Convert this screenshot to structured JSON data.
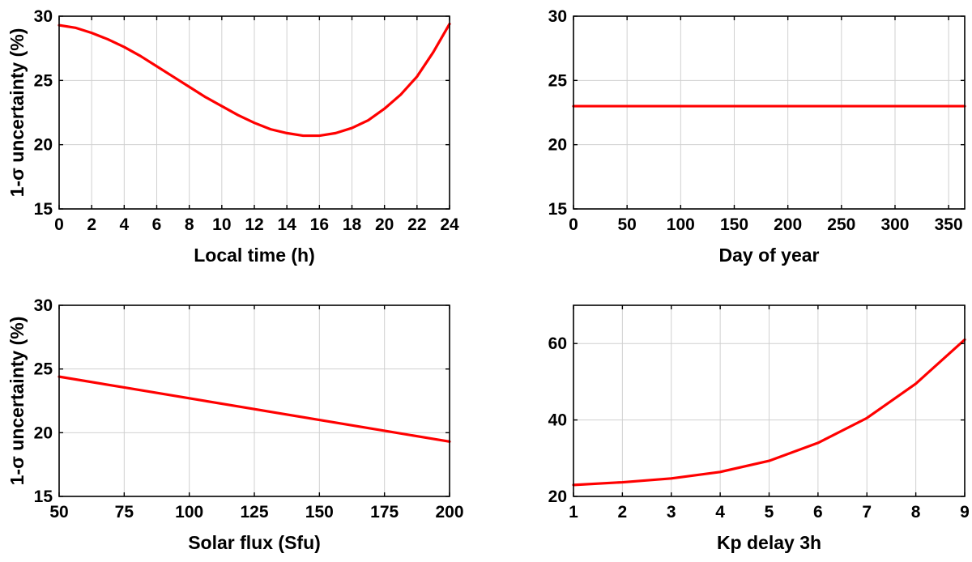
{
  "chart_data": [
    {
      "type": "line",
      "xlabel": "Local time (h)",
      "ylabel": "1-σ uncertainty (%)",
      "xlim": [
        0,
        24
      ],
      "ylim": [
        15,
        30
      ],
      "xticks": [
        0,
        2,
        4,
        6,
        8,
        10,
        12,
        14,
        16,
        18,
        20,
        22,
        24
      ],
      "yticks": [
        15,
        20,
        25,
        30
      ],
      "grid": true,
      "series": [
        {
          "color": "#ff0000",
          "x": [
            0,
            1,
            2,
            3,
            4,
            5,
            6,
            7,
            8,
            9,
            10,
            11,
            12,
            13,
            14,
            15,
            16,
            17,
            18,
            19,
            20,
            21,
            22,
            23,
            24
          ],
          "y": [
            29.3,
            29.1,
            28.7,
            28.2,
            27.6,
            26.9,
            26.1,
            25.3,
            24.5,
            23.7,
            23.0,
            22.3,
            21.7,
            21.2,
            20.9,
            20.7,
            20.7,
            20.9,
            21.3,
            21.9,
            22.8,
            23.9,
            25.3,
            27.2,
            29.4
          ]
        }
      ]
    },
    {
      "type": "line",
      "xlabel": "Day of year",
      "ylabel": "",
      "xlim": [
        0,
        365
      ],
      "ylim": [
        15,
        30
      ],
      "xticks": [
        0,
        50,
        100,
        150,
        200,
        250,
        300,
        350
      ],
      "yticks": [
        15,
        20,
        25,
        30
      ],
      "grid": true,
      "series": [
        {
          "color": "#ff0000",
          "x": [
            0,
            365
          ],
          "y": [
            23.0,
            23.0
          ]
        }
      ]
    },
    {
      "type": "line",
      "xlabel": "Solar flux (Sfu)",
      "ylabel": "1-σ uncertainty (%)",
      "xlim": [
        50,
        200
      ],
      "ylim": [
        15,
        30
      ],
      "xticks": [
        50,
        75,
        100,
        125,
        150,
        175,
        200
      ],
      "yticks": [
        15,
        20,
        25,
        30
      ],
      "grid": true,
      "series": [
        {
          "color": "#ff0000",
          "x": [
            50,
            75,
            100,
            125,
            150,
            175,
            200
          ],
          "y": [
            24.4,
            23.55,
            22.7,
            21.85,
            21.0,
            20.15,
            19.3
          ]
        }
      ]
    },
    {
      "type": "line",
      "xlabel": "Kp delay 3h",
      "ylabel": "",
      "xlim": [
        1,
        9
      ],
      "ylim": [
        20,
        70
      ],
      "xticks": [
        1,
        2,
        3,
        4,
        5,
        6,
        7,
        8,
        9
      ],
      "yticks": [
        20,
        40,
        60
      ],
      "grid": true,
      "series": [
        {
          "color": "#ff0000",
          "x": [
            1,
            2,
            3,
            4,
            5,
            6,
            7,
            8,
            9
          ],
          "y": [
            23.0,
            23.7,
            24.7,
            26.4,
            29.3,
            34.0,
            40.5,
            49.5,
            61.0
          ]
        }
      ]
    }
  ]
}
